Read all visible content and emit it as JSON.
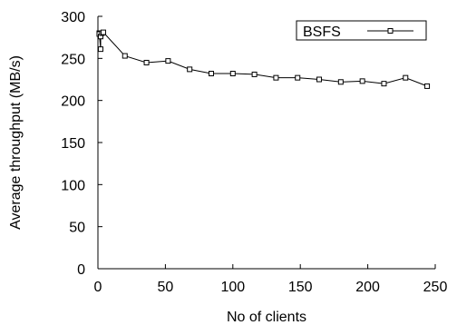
{
  "chart_data": {
    "type": "line",
    "xlabel": "No of clients",
    "ylabel": "Average throughput (MB/s)",
    "xlim": [
      0,
      250
    ],
    "ylim": [
      0,
      300
    ],
    "xticks": [
      0,
      50,
      100,
      150,
      200,
      250
    ],
    "yticks": [
      0,
      50,
      100,
      150,
      200,
      250,
      300
    ],
    "xtick_labels": [
      "0",
      "50",
      "100",
      "150",
      "200",
      "250"
    ],
    "ytick_labels": [
      "0",
      "50",
      "100",
      "150",
      "200",
      "250",
      "300"
    ],
    "grid": false,
    "legend_position": "top-right",
    "series": [
      {
        "name": "BSFS",
        "color": "#000000",
        "marker": "square",
        "x": [
          1,
          1,
          2,
          2,
          3,
          4,
          20,
          36,
          52,
          68,
          84,
          100,
          116,
          132,
          148,
          164,
          180,
          196,
          212,
          228,
          244
        ],
        "y": [
          280,
          279,
          261,
          276,
          280,
          281,
          253,
          245,
          247,
          237,
          232,
          232,
          231,
          227,
          227,
          225,
          222,
          223,
          220,
          227,
          217
        ]
      }
    ]
  }
}
